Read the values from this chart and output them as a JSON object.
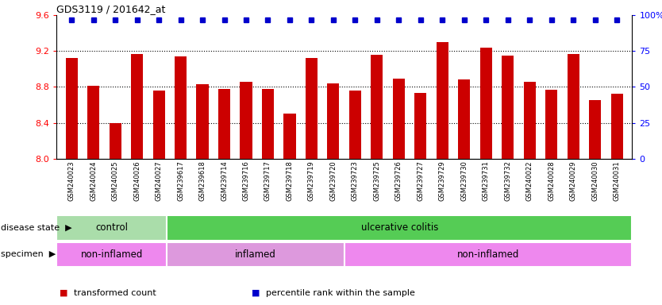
{
  "title": "GDS3119 / 201642_at",
  "samples": [
    "GSM240023",
    "GSM240024",
    "GSM240025",
    "GSM240026",
    "GSM240027",
    "GSM239617",
    "GSM239618",
    "GSM239714",
    "GSM239716",
    "GSM239717",
    "GSM239718",
    "GSM239719",
    "GSM239720",
    "GSM239723",
    "GSM239725",
    "GSM239726",
    "GSM239727",
    "GSM239729",
    "GSM239730",
    "GSM239731",
    "GSM239732",
    "GSM240022",
    "GSM240028",
    "GSM240029",
    "GSM240030",
    "GSM240031"
  ],
  "bar_values": [
    9.12,
    8.81,
    8.4,
    9.17,
    8.76,
    9.14,
    8.83,
    8.78,
    8.86,
    8.78,
    8.5,
    9.12,
    8.84,
    8.76,
    9.16,
    8.89,
    8.73,
    9.3,
    8.88,
    9.24,
    9.15,
    8.86,
    8.77,
    9.17,
    8.65,
    8.72
  ],
  "percentile_values": [
    97,
    97,
    97,
    97,
    97,
    97,
    97,
    97,
    97,
    97,
    97,
    97,
    97,
    97,
    97,
    97,
    97,
    97,
    97,
    97,
    97,
    97,
    97,
    97,
    97,
    97
  ],
  "bar_color": "#cc0000",
  "percentile_color": "#0000cc",
  "ylim_left": [
    8.0,
    9.6
  ],
  "ylim_right": [
    0,
    100
  ],
  "yticks_left": [
    8.0,
    8.4,
    8.8,
    9.2,
    9.6
  ],
  "yticks_right": [
    0,
    25,
    50,
    75,
    100
  ],
  "grid_lines": [
    8.4,
    8.8,
    9.2
  ],
  "plot_bg_color": "#ffffff",
  "disease_state_groups": [
    {
      "label": "control",
      "start": 0,
      "end": 5,
      "color": "#aaddaa"
    },
    {
      "label": "ulcerative colitis",
      "start": 5,
      "end": 26,
      "color": "#55cc55"
    }
  ],
  "specimen_groups": [
    {
      "label": "non-inflamed",
      "start": 0,
      "end": 5,
      "color": "#ee88ee"
    },
    {
      "label": "inflamed",
      "start": 5,
      "end": 13,
      "color": "#dd99dd"
    },
    {
      "label": "non-inflamed",
      "start": 13,
      "end": 26,
      "color": "#ee88ee"
    }
  ],
  "legend_items": [
    {
      "label": "transformed count",
      "color": "#cc0000",
      "marker": "s"
    },
    {
      "label": "percentile rank within the sample",
      "color": "#0000cc",
      "marker": "s"
    }
  ],
  "disease_state_label": "disease state",
  "specimen_label": "specimen",
  "arrow_color": "#888888",
  "xtick_bg_color": "#dddddd"
}
